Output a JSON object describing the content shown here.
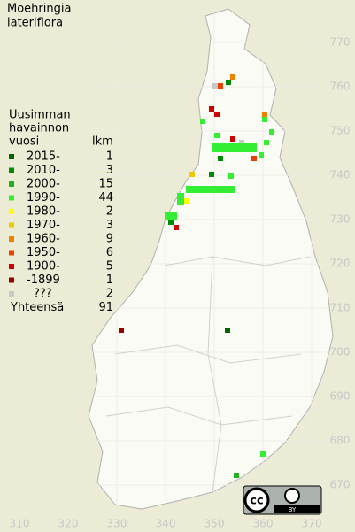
{
  "title": [
    "Moehringia",
    "lateriflora"
  ],
  "legend": {
    "heading": [
      "Uusimman",
      "havainnon",
      "vuosi"
    ],
    "count_heading": "lkm",
    "rows": [
      {
        "label": "2015-",
        "count": 1,
        "color": "#006400"
      },
      {
        "label": "2010-",
        "count": 3,
        "color": "#008c00"
      },
      {
        "label": "2000-",
        "count": 15,
        "color": "#20b020"
      },
      {
        "label": "1990-",
        "count": 44,
        "color": "#33ee33"
      },
      {
        "label": "1980-",
        "count": 2,
        "color": "#ffff00"
      },
      {
        "label": "1970-",
        "count": 3,
        "color": "#f0c800"
      },
      {
        "label": "1960-",
        "count": 9,
        "color": "#f08000"
      },
      {
        "label": "1950-",
        "count": 6,
        "color": "#e84000"
      },
      {
        "label": "1900-",
        "count": 5,
        "color": "#d00000"
      },
      {
        "label": "-1899",
        "count": 1,
        "color": "#960000"
      },
      {
        "label": "???",
        "count": 2,
        "color": "#c8c8c8"
      }
    ],
    "total_label": "Yhteensä",
    "total": 91
  },
  "grid": {
    "northing_ticks": [
      770,
      760,
      750,
      740,
      730,
      720,
      710,
      700,
      690,
      680,
      670
    ],
    "easting_ticks": [
      310,
      320,
      330,
      340,
      350,
      360,
      370
    ]
  },
  "license": {
    "cc": "cc",
    "by": "BY"
  }
}
